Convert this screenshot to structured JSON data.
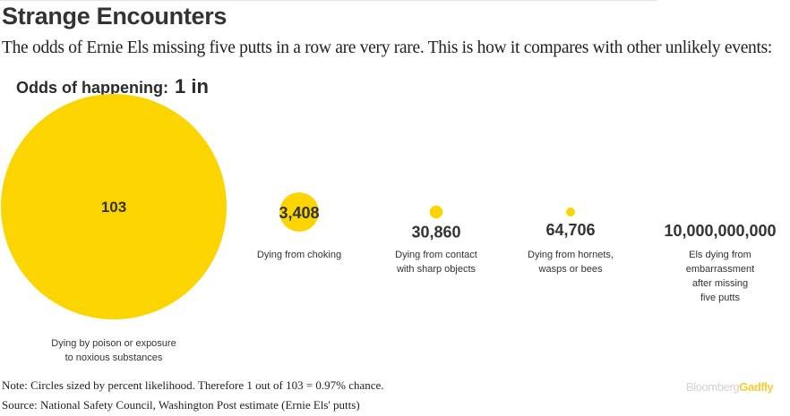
{
  "title": "Strange Encounters",
  "subtitle": "The odds of Ernie Els missing five putts in a row are very rare. This is how it compares with other unlikely events:",
  "odds_header": {
    "prefix": "Odds of happening:",
    "value": "1 in"
  },
  "note": "Note: Circles sized by percent likelihood. Therefore 1 out of 103 = 0.97% chance.",
  "source": "Source: National Safety Council, Washington Post estimate (Ernie Els' putts)",
  "brand": {
    "part1": "Bloomberg",
    "part2": "Gadfly"
  },
  "colors": {
    "circle": "#fcd500",
    "text": "#333333",
    "brand_accent": "#f0cf2f"
  },
  "chart_data": {
    "type": "bubble",
    "title": "Strange Encounters",
    "size_encoding": "percent likelihood",
    "categories": [
      "Dying by poison or exposure\nto noxious substances",
      "Dying from choking",
      "Dying from contact\nwith sharp objects",
      "Dying from hornets,\nwasps or bees",
      "Els dying from embarrassment\nafter missing five putts"
    ],
    "values": [
      103,
      3408,
      30860,
      64706,
      10000000000
    ],
    "value_labels": [
      "103",
      "3,408",
      "30,860",
      "64,706",
      "10,000,000,000"
    ],
    "unit": "Odds of happening: 1 in"
  }
}
